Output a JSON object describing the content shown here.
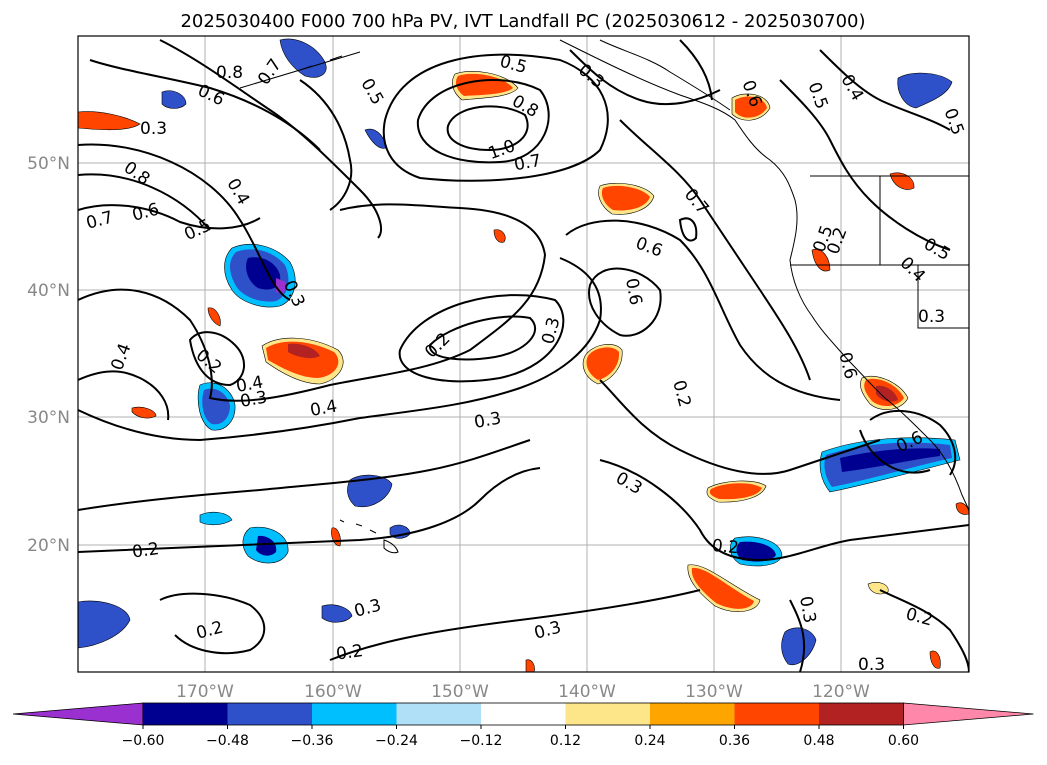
{
  "title": "2025030400 F000 700 hPa PV, IVT Landfall PC (2025030612 - 2025030700)",
  "map": {
    "lat_labels": [
      "50°N",
      "40°N",
      "30°N",
      "20°N"
    ],
    "lon_labels": [
      "170°W",
      "160°W",
      "150°W",
      "140°W",
      "130°W",
      "120°W"
    ],
    "extent": {
      "lon_min": -180,
      "lon_max": -110,
      "lat_min": 10,
      "lat_max": 60
    },
    "grid": true
  },
  "colorbar": {
    "tick_labels": [
      "−0.60",
      "−0.48",
      "−0.36",
      "−0.24",
      "−0.12",
      "0.12",
      "0.24",
      "0.36",
      "0.48",
      "0.60"
    ],
    "colors": [
      "#9b30d0",
      "#000090",
      "#2e50c8",
      "#00bfff",
      "#b0e0f8",
      "#ffffff",
      "#fde68a",
      "#ffa500",
      "#ff4500",
      "#b22222",
      "#ff88aa"
    ],
    "extend": "both"
  },
  "contour_labels": [
    "0.8",
    "0.7",
    "0.6",
    "0.5",
    "0.3",
    "0.5",
    "0.8",
    "1.0",
    "0.7",
    "0.6",
    "0.5",
    "0.4",
    "0.5",
    "0.3",
    "0.8",
    "0.6",
    "0.7",
    "0.5",
    "0.4",
    "0.3",
    "0.4",
    "0.2",
    "0.3",
    "0.4",
    "0.3",
    "0.2",
    "0.3",
    "0.6",
    "0.6",
    "0.7",
    "0.2",
    "0.3",
    "0.2",
    "0.2",
    "0.3",
    "0.2",
    "0.3",
    "0.2",
    "0.3",
    "0.5",
    "0.5",
    "0.4",
    "0.3",
    "0.6",
    "0.6",
    "0.2",
    "0.2",
    "0.3",
    "0.4"
  ]
}
